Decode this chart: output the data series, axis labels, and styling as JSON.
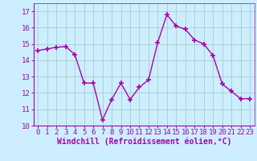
{
  "x": [
    0,
    1,
    2,
    3,
    4,
    5,
    6,
    7,
    8,
    9,
    10,
    11,
    12,
    13,
    14,
    15,
    16,
    17,
    18,
    19,
    20,
    21,
    22,
    23
  ],
  "y": [
    14.6,
    14.7,
    14.8,
    14.85,
    14.35,
    12.6,
    12.6,
    10.35,
    11.6,
    12.6,
    11.6,
    12.35,
    12.8,
    15.1,
    16.8,
    16.1,
    15.9,
    15.25,
    15.0,
    14.3,
    12.55,
    12.1,
    11.65,
    11.65
  ],
  "line_color": "#aa00aa",
  "marker": "+",
  "marker_size": 5,
  "bg_color": "#cceeff",
  "grid_color": "#aacccc",
  "xlabel": "Windchill (Refroidissement éolien,°C)",
  "xlabel_color": "#aa00aa",
  "xlabel_fontsize": 7,
  "tick_color": "#aa00aa",
  "tick_fontsize": 6.5,
  "ylim": [
    10,
    17.5
  ],
  "xlim": [
    -0.5,
    23.5
  ],
  "yticks": [
    10,
    11,
    12,
    13,
    14,
    15,
    16,
    17
  ],
  "xticks": [
    0,
    1,
    2,
    3,
    4,
    5,
    6,
    7,
    8,
    9,
    10,
    11,
    12,
    13,
    14,
    15,
    16,
    17,
    18,
    19,
    20,
    21,
    22,
    23
  ]
}
